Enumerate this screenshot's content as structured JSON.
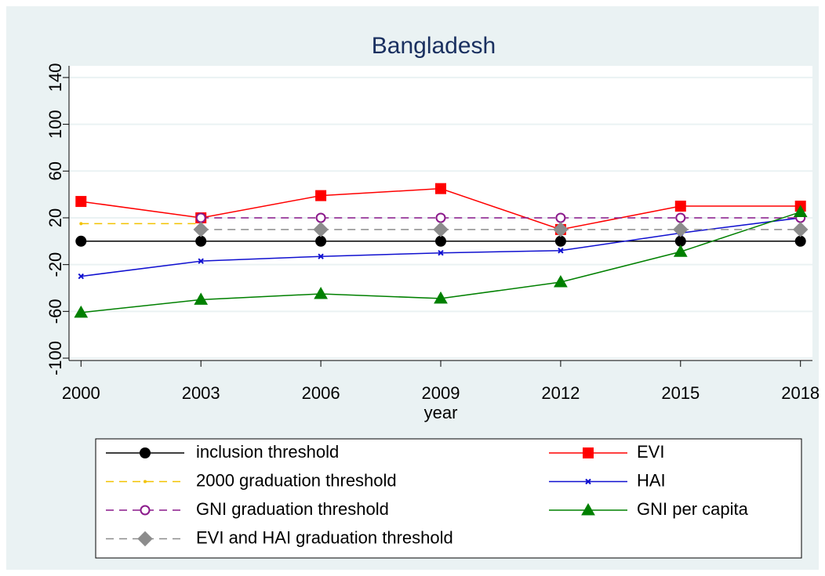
{
  "chart_data": {
    "type": "line",
    "title": "Bangladesh",
    "x_label": "year",
    "x": [
      2000,
      2003,
      2006,
      2009,
      2012,
      2015,
      2018
    ],
    "xlim": [
      1999.7,
      2018.3
    ],
    "xticks": [
      2000,
      2003,
      2006,
      2009,
      2012,
      2015,
      2018
    ],
    "ylim": [
      -102,
      150
    ],
    "yticks": [
      -100,
      -60,
      -20,
      20,
      60,
      100,
      140
    ],
    "grid": true,
    "series": [
      {
        "name": "inclusion threshold",
        "color": "#000000",
        "marker": "circle",
        "dash": "solid",
        "values": [
          0,
          0,
          0,
          0,
          0,
          0,
          0
        ]
      },
      {
        "name": "EVI",
        "color": "#ff0000",
        "marker": "square",
        "dash": "solid",
        "values": [
          34,
          20,
          39,
          45,
          10,
          30,
          30
        ]
      },
      {
        "name": "2000 graduation threshold",
        "color": "#f2c200",
        "marker": "dot",
        "dash": "dashed",
        "values": [
          15,
          15,
          null,
          null,
          null,
          null,
          null
        ]
      },
      {
        "name": "HAI",
        "color": "#1010d0",
        "marker": "x",
        "dash": "solid",
        "values": [
          -30,
          -17,
          -13,
          -10,
          -8,
          7,
          20
        ]
      },
      {
        "name": "GNI graduation threshold",
        "color": "#8b1a8b",
        "marker": "hollow-circle",
        "dash": "dashed",
        "values": [
          null,
          20,
          20,
          20,
          20,
          20,
          20
        ]
      },
      {
        "name": "GNI per capita",
        "color": "#008000",
        "marker": "triangle",
        "dash": "solid",
        "values": [
          -61,
          -50,
          -45,
          -49,
          -35,
          -9,
          25
        ]
      },
      {
        "name": "EVI and HAI graduation threshold",
        "color": "#8c8c8c",
        "marker": "diamond",
        "dash": "dashed",
        "values": [
          null,
          10,
          10,
          10,
          10,
          10,
          10
        ]
      }
    ]
  }
}
